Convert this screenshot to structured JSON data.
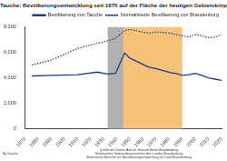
{
  "chart_data": {
    "type": "line",
    "title": "Tauche: Bevölkerungsentwicklung seit 1875 auf der Fläche der heutigen Gebietskörperschaft",
    "series": [
      {
        "name": "Bevölkerung von Tauche",
        "color": "#1f3a8a",
        "line_style": "solid",
        "x": [
          1875,
          1890,
          1910,
          1925,
          1933,
          1939,
          1946,
          1950,
          1964,
          1971,
          1981,
          1985,
          1990,
          1995,
          2000,
          2005,
          2010,
          2015,
          2020
        ],
        "values": [
          4150,
          4200,
          4250,
          4450,
          4300,
          4350,
          5950,
          5550,
          4850,
          4700,
          4400,
          4350,
          4200,
          4250,
          4350,
          4200,
          4000,
          3900,
          3800
        ]
      },
      {
        "name": "Normalisierte Bevölkerung von Brandenburg",
        "color": "#1f3a8a",
        "line_style": "dotted",
        "x": [
          1875,
          1890,
          1910,
          1925,
          1933,
          1939,
          1946,
          1950,
          1964,
          1971,
          1981,
          1990,
          1995,
          2000,
          2005,
          2010,
          2015,
          2020
        ],
        "values": [
          5000,
          5400,
          6300,
          6700,
          6900,
          7100,
          7700,
          7800,
          7500,
          7600,
          7500,
          7300,
          7200,
          7400,
          7300,
          7150,
          7200,
          7400
        ]
      }
    ],
    "shaded_periods": [
      {
        "start": 1933,
        "end": 1945,
        "color": "#b0b0b0"
      },
      {
        "start": 1945,
        "end": 1990,
        "color": "#f6c27a"
      }
    ],
    "xlim": [
      1870,
      2020
    ],
    "xticks": [
      1870,
      1880,
      1890,
      1900,
      1910,
      1920,
      1930,
      1940,
      1950,
      1960,
      1970,
      1980,
      1990,
      2000,
      2010,
      2020
    ],
    "ylim": [
      0,
      8000
    ],
    "yticks": [
      0,
      {
        "value": 2000,
        "label": "2,000"
      },
      {
        "value": 4000,
        "label": "4,000"
      },
      {
        "value": 6000,
        "label": "6,000"
      },
      {
        "value": 8000,
        "label": "8,000"
      }
    ],
    "grid": false,
    "legend": "top-right",
    "footer": {
      "author": "By Tauche",
      "sources": [
        "Quelle der Daten: Amt für Statistik Berlin-Brandenburg",
        "Historisches Gemeindeverzeichnis des Landes Brandenburg",
        "Statistische Berichte zur Bevölkerungsentwicklung im Land Brandenburg"
      ]
    }
  }
}
